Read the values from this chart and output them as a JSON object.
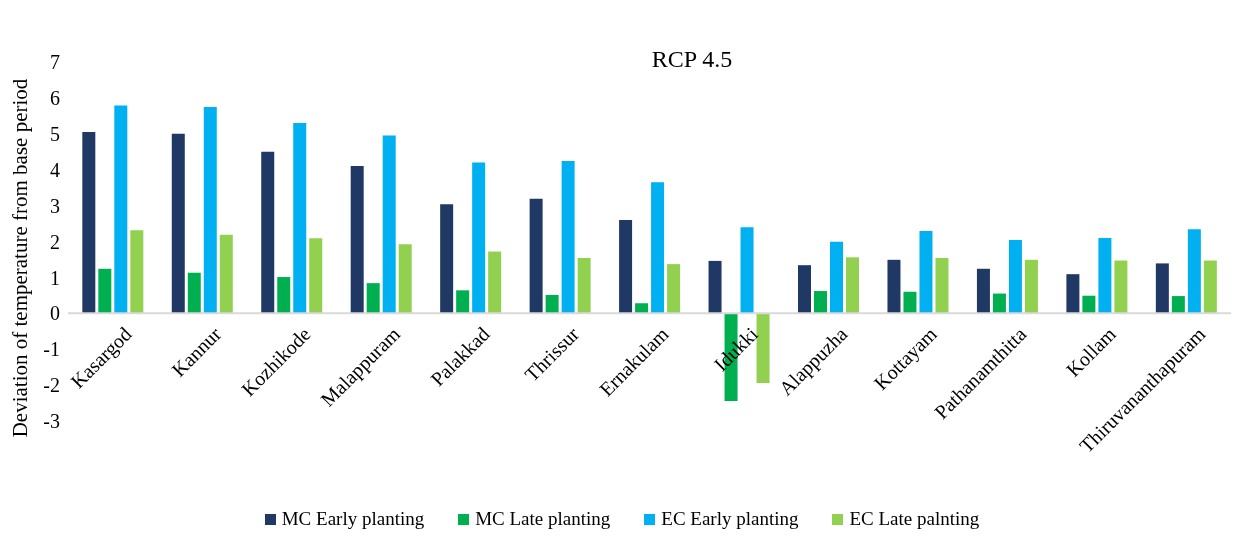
{
  "chart_data": {
    "type": "bar",
    "title": "RCP 4.5",
    "ylabel": "Deviation of temperature from base period",
    "categories": [
      "Kasargod",
      "Kannur",
      "Kozhikode",
      "Malappuram",
      "Palakkad",
      "Thrissur",
      "Ernakulam",
      "Idukki",
      "Alappuzha",
      "Kottayam",
      "Pathanamthitta",
      "Kollam",
      "Thiruvananthapuram"
    ],
    "series": [
      {
        "name": "MC Early planting",
        "color": "#203864",
        "values": [
          5.05,
          5.0,
          4.5,
          4.1,
          3.04,
          3.19,
          2.6,
          1.46,
          1.34,
          1.49,
          1.24,
          1.09,
          1.39
        ]
      },
      {
        "name": "MC Late planting",
        "color": "#00b050",
        "values": [
          1.24,
          1.13,
          1.01,
          0.84,
          0.64,
          0.51,
          0.28,
          -2.44,
          0.62,
          0.6,
          0.55,
          0.49,
          0.48
        ]
      },
      {
        "name": "EC Early planting",
        "color": "#00b0f0",
        "values": [
          5.79,
          5.75,
          5.3,
          4.95,
          4.2,
          4.24,
          3.65,
          2.4,
          1.99,
          2.29,
          2.04,
          2.1,
          2.34
        ]
      },
      {
        "name": "EC Late palnting",
        "color": "#92d050",
        "values": [
          2.31,
          2.19,
          2.09,
          1.92,
          1.72,
          1.54,
          1.37,
          -1.94,
          1.56,
          1.54,
          1.49,
          1.47,
          1.47
        ]
      }
    ],
    "ylim": [
      -3,
      7
    ],
    "yticks": [
      -3,
      -2,
      -1,
      0,
      1,
      2,
      3,
      4,
      5,
      6,
      7
    ],
    "grid": false,
    "legend": "bottom"
  }
}
